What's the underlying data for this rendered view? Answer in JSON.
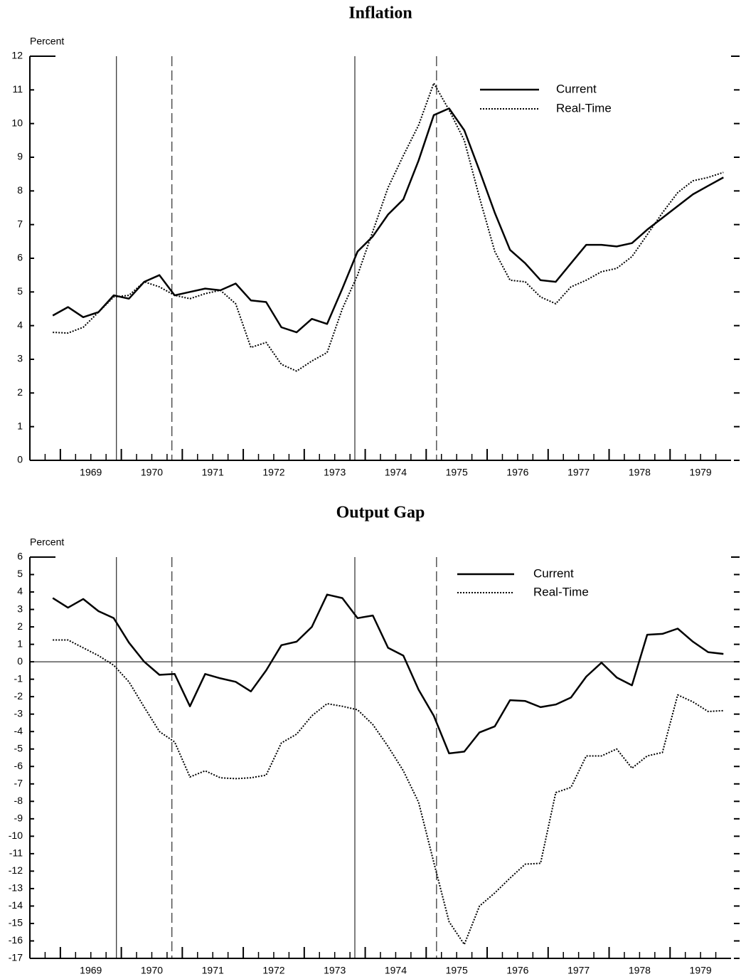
{
  "chart_data": [
    {
      "type": "line",
      "title": "Inflation",
      "y_label": "Percent",
      "x": [
        1968.875,
        1969.125,
        1969.375,
        1969.625,
        1969.875,
        1970.125,
        1970.375,
        1970.625,
        1970.875,
        1971.125,
        1971.375,
        1971.625,
        1971.875,
        1972.125,
        1972.375,
        1972.625,
        1972.875,
        1973.125,
        1973.375,
        1973.625,
        1973.875,
        1974.125,
        1974.375,
        1974.625,
        1974.875,
        1975.125,
        1975.375,
        1975.625,
        1975.875,
        1976.125,
        1976.375,
        1976.625,
        1976.875,
        1977.125,
        1977.375,
        1977.625,
        1977.875,
        1978.125,
        1978.375,
        1978.625,
        1978.875,
        1979.125,
        1979.375,
        1979.625,
        1979.875
      ],
      "series": [
        {
          "name": "Current",
          "color": "#000000",
          "dash": "solid",
          "values": [
            4.3,
            4.55,
            4.25,
            4.4,
            4.9,
            4.8,
            5.3,
            5.5,
            4.9,
            5.0,
            5.1,
            5.05,
            5.25,
            4.75,
            4.7,
            3.95,
            3.8,
            4.2,
            4.05,
            5.1,
            6.2,
            6.65,
            7.3,
            7.75,
            8.9,
            10.25,
            10.45,
            9.8,
            8.6,
            7.35,
            6.25,
            5.85,
            5.35,
            5.3,
            5.85,
            6.4,
            6.4,
            6.35,
            6.45,
            6.85,
            7.2,
            7.55,
            7.9,
            8.15,
            8.4
          ]
        },
        {
          "name": "Real-Time",
          "color": "#000000",
          "dash": "dotted",
          "values": [
            3.8,
            3.78,
            3.95,
            4.4,
            4.85,
            4.9,
            5.3,
            5.15,
            4.9,
            4.8,
            4.95,
            5.05,
            4.65,
            3.35,
            3.5,
            2.85,
            2.65,
            2.95,
            3.2,
            4.5,
            5.5,
            6.8,
            8.1,
            9.05,
            9.95,
            11.2,
            10.4,
            9.5,
            7.8,
            6.2,
            5.35,
            5.3,
            4.85,
            4.65,
            5.15,
            5.35,
            5.6,
            5.7,
            6.05,
            6.7,
            7.35,
            7.95,
            8.3,
            8.4,
            8.55
          ]
        }
      ],
      "recession_peaks": [
        1969.92,
        1973.83
      ],
      "recession_troughs": [
        1970.83,
        1975.17
      ],
      "xlim": [
        1968.5,
        1980
      ],
      "xticks": [
        1969,
        1970,
        1971,
        1972,
        1973,
        1974,
        1975,
        1976,
        1977,
        1978,
        1979
      ],
      "ylim": [
        0,
        12
      ],
      "yticks": [
        0,
        1,
        2,
        3,
        4,
        5,
        6,
        7,
        8,
        9,
        10,
        11,
        12
      ],
      "zero_line": false,
      "legend": "upper right"
    },
    {
      "type": "line",
      "title": "Output Gap",
      "y_label": "Percent",
      "x": [
        1968.875,
        1969.125,
        1969.375,
        1969.625,
        1969.875,
        1970.125,
        1970.375,
        1970.625,
        1970.875,
        1971.125,
        1971.375,
        1971.625,
        1971.875,
        1972.125,
        1972.375,
        1972.625,
        1972.875,
        1973.125,
        1973.375,
        1973.625,
        1973.875,
        1974.125,
        1974.375,
        1974.625,
        1974.875,
        1975.125,
        1975.375,
        1975.625,
        1975.875,
        1976.125,
        1976.375,
        1976.625,
        1976.875,
        1977.125,
        1977.375,
        1977.625,
        1977.875,
        1978.125,
        1978.375,
        1978.625,
        1978.875,
        1979.125,
        1979.375,
        1979.625,
        1979.875
      ],
      "series": [
        {
          "name": "Current",
          "color": "#000000",
          "dash": "solid",
          "values": [
            3.65,
            3.1,
            3.6,
            2.9,
            2.5,
            1.1,
            0.0,
            -0.75,
            -0.7,
            -2.55,
            -0.7,
            -0.95,
            -1.15,
            -1.7,
            -0.5,
            0.95,
            1.15,
            2.0,
            3.85,
            3.65,
            2.5,
            2.65,
            0.8,
            0.35,
            -1.6,
            -3.1,
            -5.25,
            -5.15,
            -4.05,
            -3.7,
            -2.2,
            -2.25,
            -2.6,
            -2.45,
            -2.05,
            -0.85,
            -0.05,
            -0.9,
            -1.35,
            1.55,
            1.6,
            1.9,
            1.15,
            0.55,
            0.45
          ]
        },
        {
          "name": "Real-Time",
          "color": "#000000",
          "dash": "dotted",
          "values": [
            1.25,
            1.25,
            0.8,
            0.35,
            -0.2,
            -1.15,
            -2.6,
            -4.0,
            -4.6,
            -6.6,
            -6.25,
            -6.65,
            -6.7,
            -6.65,
            -6.5,
            -4.65,
            -4.15,
            -3.1,
            -2.4,
            -2.55,
            -2.75,
            -3.6,
            -4.85,
            -6.25,
            -8.05,
            -11.5,
            -14.9,
            -16.2,
            -14.0,
            -13.25,
            -12.4,
            -11.6,
            -11.55,
            -7.5,
            -7.2,
            -5.4,
            -5.4,
            -5.0,
            -6.1,
            -5.4,
            -5.2,
            -1.9,
            -2.3,
            -2.85,
            -2.8
          ]
        }
      ],
      "recession_peaks": [
        1969.92,
        1973.83
      ],
      "recession_troughs": [
        1970.83,
        1975.17
      ],
      "xlim": [
        1968.5,
        1980
      ],
      "xticks": [
        1969,
        1970,
        1971,
        1972,
        1973,
        1974,
        1975,
        1976,
        1977,
        1978,
        1979
      ],
      "ylim": [
        -17,
        6
      ],
      "yticks": [
        -17,
        -16,
        -15,
        -14,
        -13,
        -12,
        -11,
        -10,
        -9,
        -8,
        -7,
        -6,
        -5,
        -4,
        -3,
        -2,
        -1,
        0,
        1,
        2,
        3,
        4,
        5,
        6
      ],
      "zero_line": true,
      "legend": "upper right"
    }
  ]
}
